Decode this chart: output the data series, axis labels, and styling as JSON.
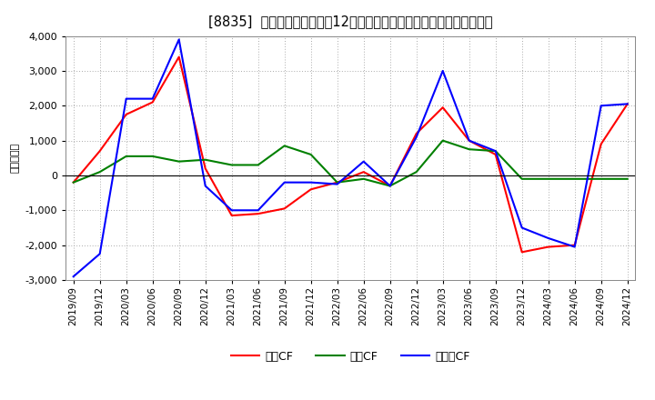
{
  "title": "[8835]  キャッシュフローの12か月移動合計の対前年同期増減額の推移",
  "ylabel": "（百万円）",
  "background_color": "#ffffff",
  "grid_color": "#aaaaaa",
  "ylim": [
    -3000,
    4000
  ],
  "yticks": [
    -3000,
    -2000,
    -1000,
    0,
    1000,
    2000,
    3000,
    4000
  ],
  "labels": [
    "2019/09",
    "2019/12",
    "2020/03",
    "2020/06",
    "2020/09",
    "2020/12",
    "2021/03",
    "2021/06",
    "2021/09",
    "2021/12",
    "2022/03",
    "2022/06",
    "2022/09",
    "2022/12",
    "2023/03",
    "2023/06",
    "2023/09",
    "2023/12",
    "2024/03",
    "2024/06",
    "2024/09",
    "2024/12"
  ],
  "operating_cf": [
    -200,
    700,
    1750,
    2100,
    3400,
    200,
    -1150,
    -1100,
    -950,
    -400,
    -200,
    100,
    -300,
    1200,
    1950,
    1000,
    600,
    -2200,
    -2050,
    -2000,
    900,
    2050
  ],
  "investing_cf": [
    -200,
    100,
    550,
    550,
    400,
    450,
    300,
    300,
    850,
    600,
    -200,
    -100,
    -300,
    100,
    1000,
    750,
    700,
    -100,
    -100,
    -100,
    -100,
    -100
  ],
  "free_cf": [
    -2900,
    -2250,
    2200,
    2200,
    3900,
    -300,
    -1000,
    -1000,
    -200,
    -200,
    -250,
    400,
    -300,
    1100,
    3000,
    1000,
    700,
    -1500,
    -1800,
    -2050,
    2000,
    2050
  ],
  "operating_color": "#ff0000",
  "investing_color": "#008000",
  "free_color": "#0000ff",
  "line_width": 1.5,
  "legend_operating": "営業CF",
  "legend_investing": "投資CF",
  "legend_free": "フリーCF"
}
